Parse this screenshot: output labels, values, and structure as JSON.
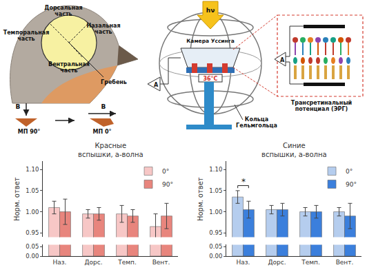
{
  "diagram": {
    "head": {
      "dorsal": "Дорсальная часть",
      "temporal": "Темпоральная часть",
      "nasal": "Назальная часть",
      "ventral": "Вентральная часть",
      "pecten": "Гребень"
    },
    "field": [
      {
        "vector": "B",
        "label": "МП 90°"
      },
      {
        "vector": "B",
        "label": "МП 0°"
      }
    ],
    "setup": {
      "light": "hν",
      "chamber": "Камера Уссинга",
      "temperature": "36°C",
      "amplifier": "A",
      "coils": "Кольца Гельмгольца"
    },
    "inset": {
      "amplifier": "A",
      "label": "Трансретинальный потенциал (ЭРГ)"
    }
  },
  "chart_data": [
    {
      "type": "bar",
      "title": "Красные вспышки, а-волна",
      "y_label": "Норм. ответ",
      "categories": [
        "Наз.",
        "Дорс.",
        "Темп.",
        "Вент."
      ],
      "series": [
        {
          "name": "0°",
          "color": "#f7c7c6",
          "values": [
            1.01,
            0.995,
            0.995,
            0.965
          ],
          "errors": [
            0.015,
            0.01,
            0.02,
            0.03
          ]
        },
        {
          "name": "90°",
          "color": "#e8857d",
          "values": [
            1.0,
            0.995,
            0.99,
            0.99
          ],
          "errors": [
            0.03,
            0.015,
            0.015,
            0.03
          ]
        }
      ],
      "ylim": [
        0,
        1.12
      ],
      "y_break": [
        0.06,
        0.94
      ],
      "yticks": [
        {
          "value": 0,
          "label": "0.00"
        },
        0.05,
        0.95,
        {
          "value": 1,
          "label": "1.00"
        },
        1.05,
        {
          "value": 1.1,
          "label": "1.10"
        }
      ],
      "legend": "top right"
    },
    {
      "type": "bar",
      "title": "Синие вспышки, а-волна",
      "y_label": "Норм. ответ",
      "categories": [
        "Наз.",
        "Дорс.",
        "Темп.",
        "Вент."
      ],
      "series": [
        {
          "name": "0°",
          "color": "#b5cdee",
          "values": [
            1.035,
            1.005,
            1.0,
            1.0
          ],
          "errors": [
            0.015,
            0.01,
            0.01,
            0.01
          ]
        },
        {
          "name": "90°",
          "color": "#3b7fdc",
          "values": [
            1.005,
            1.005,
            1.0,
            0.99
          ],
          "errors": [
            0.02,
            0.015,
            0.015,
            0.03
          ]
        }
      ],
      "ylim": [
        0,
        1.12
      ],
      "y_break": [
        0.06,
        0.94
      ],
      "yticks": [
        {
          "value": 0,
          "label": "0.00"
        },
        0.05,
        0.95,
        {
          "value": 1,
          "label": "1.00"
        },
        1.05,
        {
          "value": 1.1,
          "label": "1.10"
        }
      ],
      "legend": "top right",
      "significance": [
        {
          "category": "Наз.",
          "text": "*"
        }
      ]
    }
  ]
}
